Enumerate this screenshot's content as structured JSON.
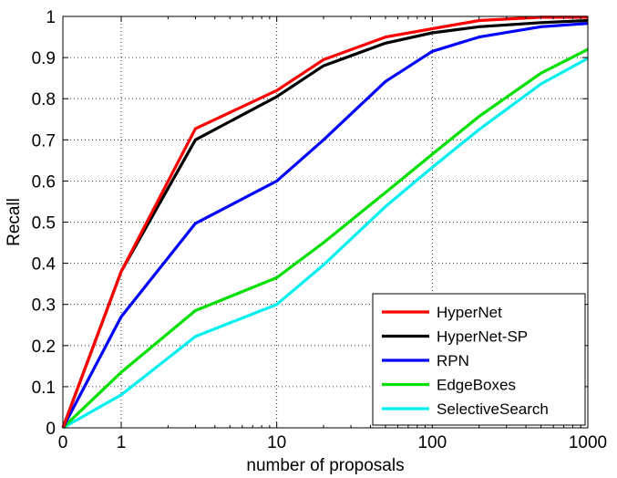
{
  "chart_data": {
    "type": "line",
    "xlabel": "number of proposals",
    "ylabel": "Recall",
    "x_scale": "log",
    "xlim": [
      0,
      1000
    ],
    "ylim": [
      0,
      1
    ],
    "x_ticks": [
      {
        "value": 0,
        "label": "0"
      },
      {
        "value": 1,
        "label": "1"
      },
      {
        "value": 10,
        "label": "10"
      },
      {
        "value": 100,
        "label": "100"
      },
      {
        "value": 1000,
        "label": "1000"
      }
    ],
    "y_ticks": [
      {
        "value": 0,
        "label": "0"
      },
      {
        "value": 0.1,
        "label": "0.1"
      },
      {
        "value": 0.2,
        "label": "0.2"
      },
      {
        "value": 0.3,
        "label": "0.3"
      },
      {
        "value": 0.4,
        "label": "0.4"
      },
      {
        "value": 0.5,
        "label": "0.5"
      },
      {
        "value": 0.6,
        "label": "0.6"
      },
      {
        "value": 0.7,
        "label": "0.7"
      },
      {
        "value": 0.8,
        "label": "0.8"
      },
      {
        "value": 0.9,
        "label": "0.9"
      },
      {
        "value": 1,
        "label": "1"
      }
    ],
    "grid": "dotted",
    "legend_position": "bottom-right",
    "series": [
      {
        "name": "HyperNet",
        "color": "#ff0000",
        "points": [
          [
            0,
            0
          ],
          [
            1,
            0.38
          ],
          [
            3,
            0.727
          ],
          [
            10,
            0.82
          ],
          [
            20,
            0.895
          ],
          [
            50,
            0.95
          ],
          [
            100,
            0.97
          ],
          [
            200,
            0.99
          ],
          [
            500,
            0.998
          ],
          [
            1000,
            0.998
          ]
        ]
      },
      {
        "name": "HyperNet-SP",
        "color": "#000000",
        "points": [
          [
            0,
            0
          ],
          [
            1,
            0.38
          ],
          [
            3,
            0.7
          ],
          [
            10,
            0.805
          ],
          [
            20,
            0.88
          ],
          [
            50,
            0.935
          ],
          [
            100,
            0.96
          ],
          [
            200,
            0.975
          ],
          [
            500,
            0.985
          ],
          [
            1000,
            0.99
          ]
        ]
      },
      {
        "name": "RPN",
        "color": "#0000ff",
        "points": [
          [
            0,
            0
          ],
          [
            1,
            0.27
          ],
          [
            3,
            0.497
          ],
          [
            10,
            0.6
          ],
          [
            20,
            0.7
          ],
          [
            50,
            0.842
          ],
          [
            100,
            0.915
          ],
          [
            200,
            0.95
          ],
          [
            500,
            0.975
          ],
          [
            1000,
            0.983
          ]
        ]
      },
      {
        "name": "EdgeBoxes",
        "color": "#00e000",
        "points": [
          [
            0,
            0
          ],
          [
            1,
            0.135
          ],
          [
            3,
            0.285
          ],
          [
            10,
            0.365
          ],
          [
            20,
            0.45
          ],
          [
            50,
            0.572
          ],
          [
            100,
            0.665
          ],
          [
            200,
            0.757
          ],
          [
            500,
            0.862
          ],
          [
            1000,
            0.92
          ]
        ]
      },
      {
        "name": "SelectiveSearch",
        "color": "#00f0f0",
        "points": [
          [
            0,
            0
          ],
          [
            1,
            0.08
          ],
          [
            3,
            0.222
          ],
          [
            10,
            0.3
          ],
          [
            20,
            0.396
          ],
          [
            50,
            0.538
          ],
          [
            100,
            0.633
          ],
          [
            200,
            0.725
          ],
          [
            500,
            0.836
          ],
          [
            1000,
            0.898
          ]
        ]
      }
    ]
  }
}
